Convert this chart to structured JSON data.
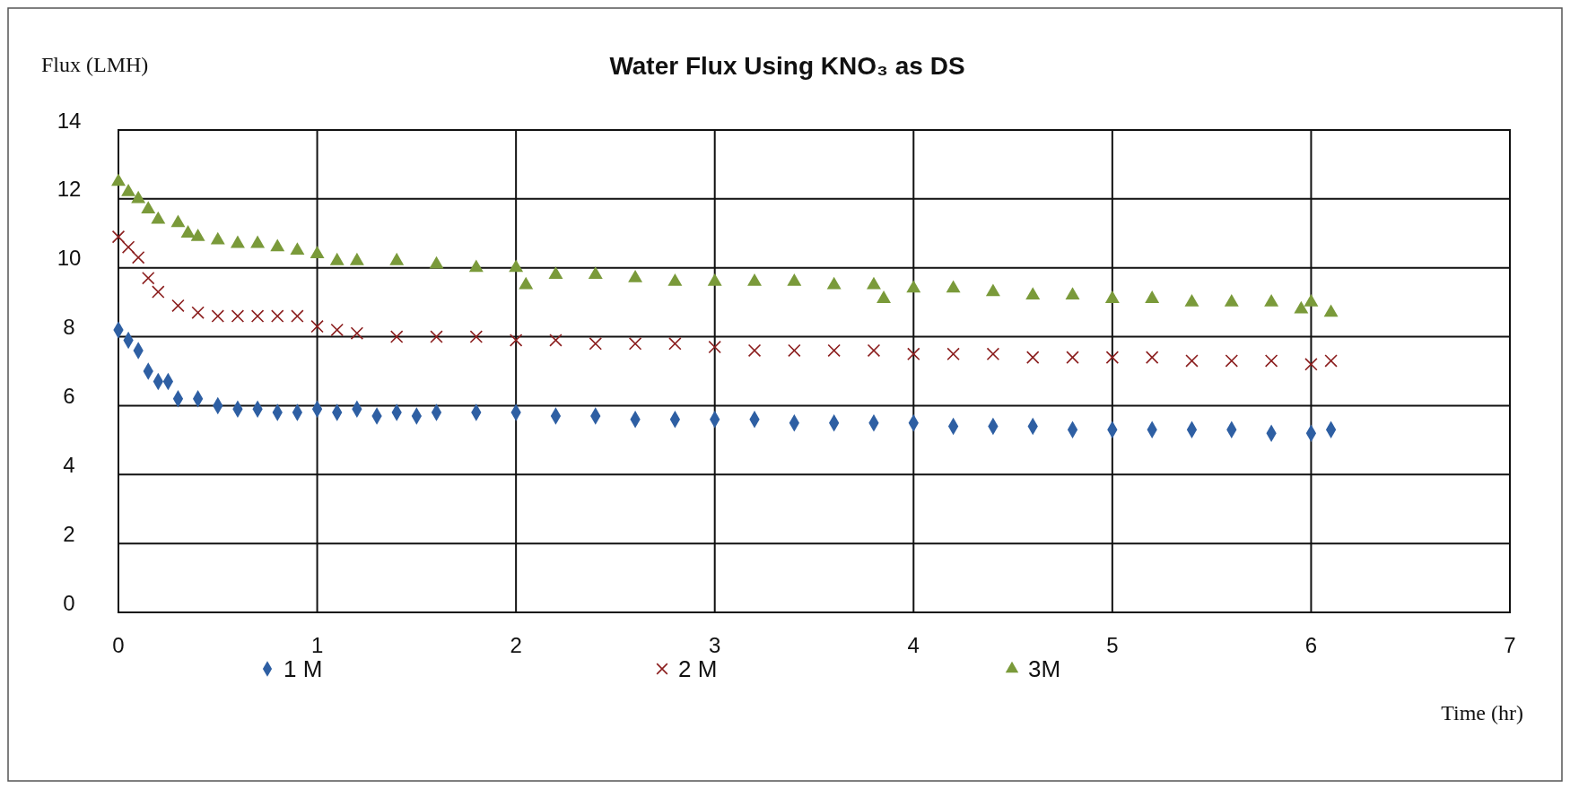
{
  "chart_data": {
    "type": "scatter",
    "title": "Water Flux Using KNO₃ as DS",
    "xlabel": "Time (hr)",
    "ylabel": "Flux (LMH)",
    "xlim": [
      0,
      7
    ],
    "xticks": [
      0,
      1,
      2,
      3,
      4,
      5,
      6,
      7
    ],
    "ylim": [
      0,
      14
    ],
    "yticks": [
      0,
      2,
      4,
      6,
      8,
      10,
      12,
      14
    ],
    "grid": true,
    "legend": "bottom",
    "series": [
      {
        "name": "1 M",
        "color": "#2e5fa3",
        "marker": "diamond",
        "x": [
          0,
          0.05,
          0.1,
          0.15,
          0.2,
          0.25,
          0.3,
          0.4,
          0.5,
          0.6,
          0.7,
          0.8,
          0.9,
          1.0,
          1.1,
          1.2,
          1.3,
          1.4,
          1.5,
          1.6,
          1.8,
          2.0,
          2.2,
          2.4,
          2.6,
          2.8,
          3.0,
          3.2,
          3.4,
          3.6,
          3.8,
          4.0,
          4.2,
          4.4,
          4.6,
          4.8,
          5.0,
          5.2,
          5.4,
          5.6,
          5.8,
          6.0,
          6.1
        ],
        "values": [
          8.2,
          7.9,
          7.6,
          7.0,
          6.7,
          6.7,
          6.2,
          6.2,
          6.0,
          5.9,
          5.9,
          5.8,
          5.8,
          5.9,
          5.8,
          5.9,
          5.7,
          5.8,
          5.7,
          5.8,
          5.8,
          5.8,
          5.7,
          5.7,
          5.6,
          5.6,
          5.6,
          5.6,
          5.5,
          5.5,
          5.5,
          5.5,
          5.4,
          5.4,
          5.4,
          5.3,
          5.3,
          5.3,
          5.3,
          5.3,
          5.2,
          5.2,
          5.3
        ]
      },
      {
        "name": "2 M",
        "color": "#8b1e1e",
        "marker": "cross",
        "x": [
          0,
          0.05,
          0.1,
          0.15,
          0.2,
          0.3,
          0.4,
          0.5,
          0.6,
          0.7,
          0.8,
          0.9,
          1.0,
          1.1,
          1.2,
          1.4,
          1.6,
          1.8,
          2.0,
          2.2,
          2.4,
          2.6,
          2.8,
          3.0,
          3.2,
          3.4,
          3.6,
          3.8,
          4.0,
          4.2,
          4.4,
          4.6,
          4.8,
          5.0,
          5.2,
          5.4,
          5.6,
          5.8,
          6.0,
          6.1
        ],
        "values": [
          10.9,
          10.6,
          10.3,
          9.7,
          9.3,
          8.9,
          8.7,
          8.6,
          8.6,
          8.6,
          8.6,
          8.6,
          8.3,
          8.2,
          8.1,
          8.0,
          8.0,
          8.0,
          7.9,
          7.9,
          7.8,
          7.8,
          7.8,
          7.7,
          7.6,
          7.6,
          7.6,
          7.6,
          7.5,
          7.5,
          7.5,
          7.4,
          7.4,
          7.4,
          7.4,
          7.3,
          7.3,
          7.3,
          7.2,
          7.3
        ]
      },
      {
        "name": "3M",
        "color": "#7a9a3a",
        "marker": "triangle",
        "x": [
          0,
          0.05,
          0.1,
          0.15,
          0.2,
          0.3,
          0.35,
          0.4,
          0.5,
          0.6,
          0.7,
          0.8,
          0.9,
          1.0,
          1.1,
          1.2,
          1.4,
          1.6,
          1.8,
          2.0,
          2.05,
          2.2,
          2.4,
          2.6,
          2.8,
          3.0,
          3.2,
          3.4,
          3.6,
          3.8,
          3.85,
          4.0,
          4.2,
          4.4,
          4.6,
          4.8,
          5.0,
          5.2,
          5.4,
          5.6,
          5.8,
          5.95,
          6.0,
          6.1
        ],
        "values": [
          12.5,
          12.2,
          12.0,
          11.7,
          11.4,
          11.3,
          11.0,
          10.9,
          10.8,
          10.7,
          10.7,
          10.6,
          10.5,
          10.4,
          10.2,
          10.2,
          10.2,
          10.1,
          10.0,
          10.0,
          9.5,
          9.8,
          9.8,
          9.7,
          9.6,
          9.6,
          9.6,
          9.6,
          9.5,
          9.5,
          9.1,
          9.4,
          9.4,
          9.3,
          9.2,
          9.2,
          9.1,
          9.1,
          9.0,
          9.0,
          9.0,
          8.8,
          9.0,
          8.7
        ]
      }
    ]
  }
}
